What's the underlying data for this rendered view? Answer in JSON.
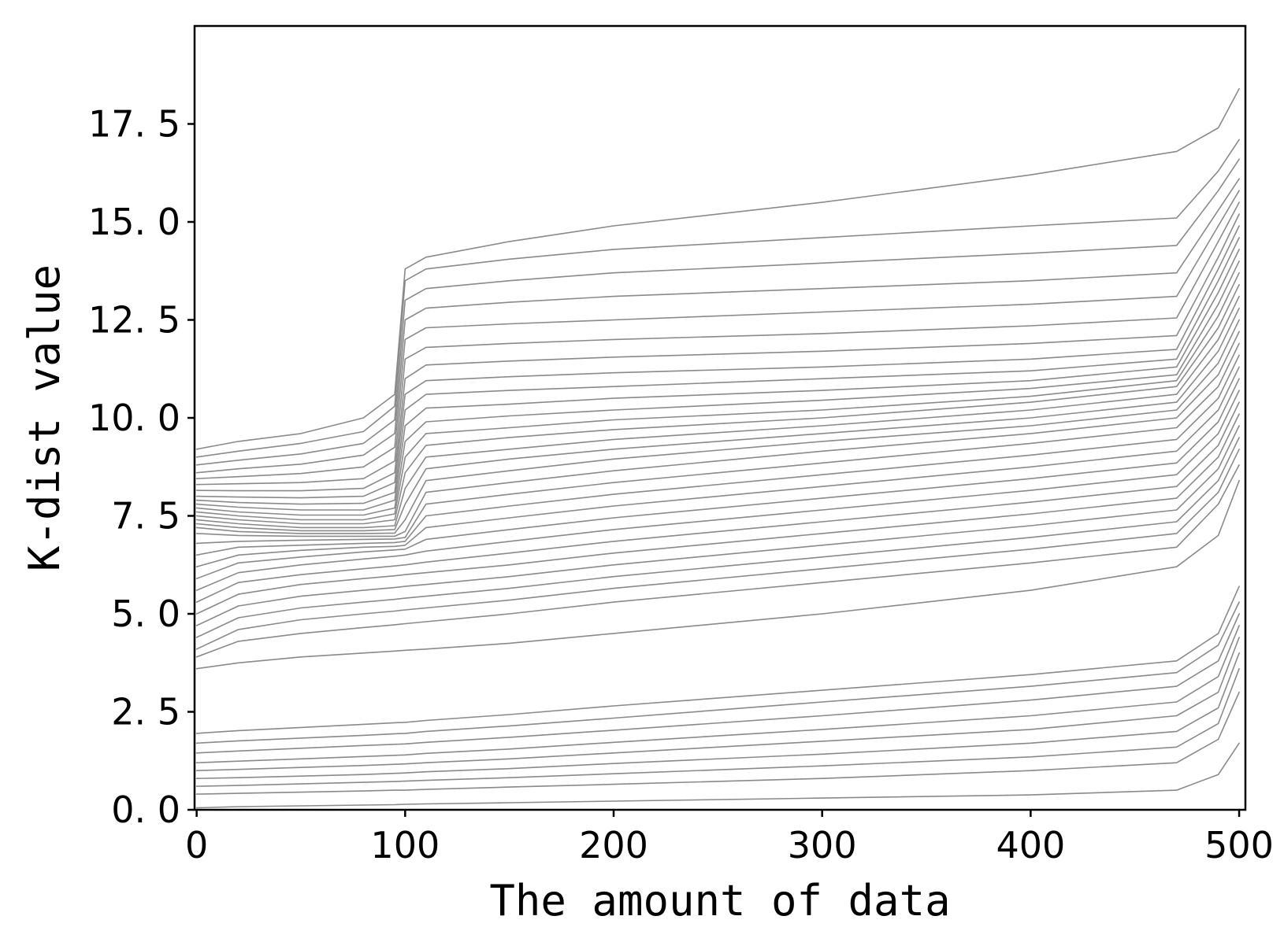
{
  "chart_data": {
    "type": "line",
    "xlabel": "The amount of data",
    "ylabel": "K-dist value",
    "xlim": [
      -1,
      503
    ],
    "ylim": [
      0,
      20
    ],
    "x_ticks": [
      0,
      100,
      200,
      300,
      400,
      500
    ],
    "x_tick_labels": [
      "0",
      "100",
      "200",
      "300",
      "400",
      "500"
    ],
    "y_ticks": [
      0,
      2.5,
      5,
      7.5,
      10,
      12.5,
      15,
      17.5
    ],
    "y_tick_labels": [
      "0. 0",
      "2. 5",
      "5. 0",
      "7. 5",
      "10. 0",
      "12. 5",
      "15. 0",
      "17. 5"
    ],
    "grid": false,
    "legend": "none",
    "line_color": "#8a8a8a",
    "x_points": [
      0,
      20,
      50,
      80,
      95,
      100,
      110,
      150,
      200,
      300,
      400,
      470,
      490,
      500
    ],
    "series": [
      {
        "values": [
          0.05,
          0.08,
          0.1,
          0.12,
          0.13,
          0.14,
          0.15,
          0.18,
          0.22,
          0.3,
          0.38,
          0.5,
          0.9,
          1.7
        ]
      },
      {
        "values": [
          0.4,
          0.42,
          0.45,
          0.48,
          0.5,
          0.5,
          0.52,
          0.58,
          0.65,
          0.8,
          1.0,
          1.2,
          1.8,
          3.0
        ]
      },
      {
        "values": [
          0.6,
          0.62,
          0.66,
          0.7,
          0.72,
          0.73,
          0.75,
          0.82,
          0.92,
          1.12,
          1.35,
          1.6,
          2.2,
          3.6
        ]
      },
      {
        "values": [
          0.8,
          0.82,
          0.86,
          0.9,
          0.93,
          0.94,
          0.97,
          1.05,
          1.18,
          1.42,
          1.7,
          2.0,
          2.6,
          4.0
        ]
      },
      {
        "values": [
          1.0,
          1.03,
          1.08,
          1.13,
          1.16,
          1.17,
          1.2,
          1.3,
          1.45,
          1.75,
          2.05,
          2.4,
          3.0,
          4.4
        ]
      },
      {
        "values": [
          1.2,
          1.24,
          1.3,
          1.36,
          1.39,
          1.4,
          1.44,
          1.55,
          1.72,
          2.05,
          2.4,
          2.75,
          3.4,
          4.7
        ]
      },
      {
        "values": [
          1.45,
          1.5,
          1.57,
          1.64,
          1.67,
          1.68,
          1.72,
          1.85,
          2.03,
          2.4,
          2.8,
          3.15,
          3.8,
          5.0
        ]
      },
      {
        "values": [
          1.7,
          1.76,
          1.83,
          1.9,
          1.94,
          1.95,
          2.0,
          2.14,
          2.34,
          2.75,
          3.15,
          3.5,
          4.2,
          5.3
        ]
      },
      {
        "values": [
          1.95,
          2.02,
          2.1,
          2.18,
          2.22,
          2.23,
          2.28,
          2.43,
          2.65,
          3.05,
          3.45,
          3.8,
          4.5,
          5.7
        ]
      },
      {
        "values": [
          3.6,
          3.75,
          3.9,
          4.0,
          4.05,
          4.07,
          4.1,
          4.25,
          4.5,
          5.0,
          5.6,
          6.2,
          7.0,
          8.4
        ]
      },
      {
        "values": [
          3.9,
          4.3,
          4.5,
          4.65,
          4.72,
          4.75,
          4.8,
          5.0,
          5.3,
          5.8,
          6.3,
          6.7,
          7.8,
          8.8
        ]
      },
      {
        "values": [
          4.1,
          4.6,
          4.85,
          5.0,
          5.07,
          5.1,
          5.15,
          5.35,
          5.65,
          6.15,
          6.65,
          7.05,
          8.1,
          9.2
        ]
      },
      {
        "values": [
          4.4,
          4.9,
          5.15,
          5.3,
          5.37,
          5.4,
          5.45,
          5.65,
          5.95,
          6.45,
          6.95,
          7.35,
          8.4,
          9.5
        ]
      },
      {
        "values": [
          4.7,
          5.2,
          5.45,
          5.6,
          5.67,
          5.7,
          5.75,
          5.95,
          6.25,
          6.75,
          7.25,
          7.65,
          8.7,
          9.8
        ]
      },
      {
        "values": [
          5.0,
          5.5,
          5.75,
          5.9,
          5.97,
          6.0,
          6.05,
          6.25,
          6.55,
          7.05,
          7.55,
          7.95,
          9.0,
          10.1
        ]
      },
      {
        "values": [
          5.3,
          5.8,
          6.0,
          6.15,
          6.22,
          6.25,
          6.32,
          6.55,
          6.85,
          7.35,
          7.85,
          8.25,
          9.3,
          10.4
        ]
      },
      {
        "values": [
          5.6,
          6.05,
          6.25,
          6.4,
          6.47,
          6.5,
          6.6,
          6.85,
          7.15,
          7.65,
          8.15,
          8.55,
          9.6,
          10.7
        ]
      },
      {
        "values": [
          5.9,
          6.3,
          6.45,
          6.58,
          6.63,
          6.65,
          6.9,
          7.15,
          7.45,
          7.95,
          8.45,
          8.85,
          9.9,
          11.0
        ]
      },
      {
        "values": [
          6.2,
          6.5,
          6.62,
          6.7,
          6.72,
          6.75,
          7.2,
          7.45,
          7.75,
          8.25,
          8.75,
          9.15,
          10.2,
          11.3
        ]
      },
      {
        "values": [
          6.5,
          6.7,
          6.75,
          6.8,
          6.82,
          6.85,
          7.5,
          7.75,
          8.05,
          8.55,
          9.05,
          9.45,
          10.5,
          11.6
        ]
      },
      {
        "values": [
          6.8,
          6.85,
          6.88,
          6.9,
          6.91,
          6.95,
          7.8,
          8.05,
          8.35,
          8.85,
          9.35,
          9.75,
          10.8,
          11.9
        ]
      },
      {
        "values": [
          7.05,
          7.0,
          6.98,
          6.98,
          6.98,
          7.1,
          8.1,
          8.35,
          8.65,
          9.15,
          9.6,
          10.0,
          11.1,
          12.2
        ]
      },
      {
        "values": [
          7.2,
          7.1,
          7.05,
          7.05,
          7.06,
          7.4,
          8.4,
          8.65,
          8.95,
          9.4,
          9.8,
          10.2,
          11.4,
          12.5
        ]
      },
      {
        "values": [
          7.3,
          7.2,
          7.12,
          7.12,
          7.15,
          7.8,
          8.7,
          8.95,
          9.2,
          9.6,
          10.0,
          10.4,
          11.7,
          12.8
        ]
      },
      {
        "values": [
          7.4,
          7.3,
          7.2,
          7.2,
          7.25,
          8.2,
          9.0,
          9.2,
          9.45,
          9.8,
          10.2,
          10.6,
          12.0,
          13.1
        ]
      },
      {
        "values": [
          7.5,
          7.4,
          7.3,
          7.3,
          7.4,
          8.6,
          9.3,
          9.5,
          9.7,
          10.0,
          10.4,
          10.8,
          12.3,
          13.4
        ]
      },
      {
        "values": [
          7.6,
          7.5,
          7.4,
          7.4,
          7.55,
          9.0,
          9.6,
          9.75,
          9.95,
          10.2,
          10.55,
          10.95,
          12.6,
          13.7
        ]
      },
      {
        "values": [
          7.7,
          7.6,
          7.52,
          7.52,
          7.7,
          9.4,
          9.9,
          10.05,
          10.2,
          10.45,
          10.75,
          11.1,
          12.9,
          14.0
        ]
      },
      {
        "values": [
          7.8,
          7.72,
          7.65,
          7.65,
          7.9,
          9.8,
          10.25,
          10.35,
          10.5,
          10.7,
          10.95,
          11.3,
          13.2,
          14.3
        ]
      },
      {
        "values": [
          7.9,
          7.84,
          7.8,
          7.82,
          8.1,
          10.2,
          10.6,
          10.7,
          10.8,
          11.0,
          11.2,
          11.5,
          13.5,
          14.6
        ]
      },
      {
        "values": [
          8.0,
          7.98,
          7.96,
          8.0,
          8.35,
          10.6,
          10.95,
          11.05,
          11.15,
          11.3,
          11.5,
          11.75,
          13.8,
          14.9
        ]
      },
      {
        "values": [
          8.15,
          8.14,
          8.14,
          8.2,
          8.6,
          11.0,
          11.35,
          11.45,
          11.55,
          11.7,
          11.9,
          12.1,
          14.1,
          15.2
        ]
      },
      {
        "values": [
          8.3,
          8.32,
          8.35,
          8.45,
          8.9,
          11.5,
          11.8,
          11.9,
          12.0,
          12.15,
          12.35,
          12.55,
          14.5,
          15.5
        ]
      },
      {
        "values": [
          8.45,
          8.5,
          8.58,
          8.75,
          9.25,
          12.0,
          12.3,
          12.4,
          12.5,
          12.7,
          12.9,
          13.1,
          14.9,
          15.8
        ]
      },
      {
        "values": [
          8.6,
          8.7,
          8.82,
          9.05,
          9.6,
          12.5,
          12.8,
          12.95,
          13.1,
          13.3,
          13.5,
          13.7,
          15.3,
          16.1
        ]
      },
      {
        "values": [
          8.8,
          8.92,
          9.08,
          9.35,
          9.95,
          13.0,
          13.3,
          13.5,
          13.7,
          13.95,
          14.2,
          14.4,
          15.8,
          16.6
        ]
      },
      {
        "values": [
          9.0,
          9.15,
          9.35,
          9.65,
          10.3,
          13.5,
          13.8,
          14.05,
          14.3,
          14.6,
          14.9,
          15.1,
          16.3,
          17.1
        ]
      },
      {
        "values": [
          9.2,
          9.4,
          9.6,
          10.0,
          10.6,
          13.8,
          14.1,
          14.5,
          14.9,
          15.5,
          16.2,
          16.8,
          17.4,
          18.4
        ]
      }
    ]
  }
}
